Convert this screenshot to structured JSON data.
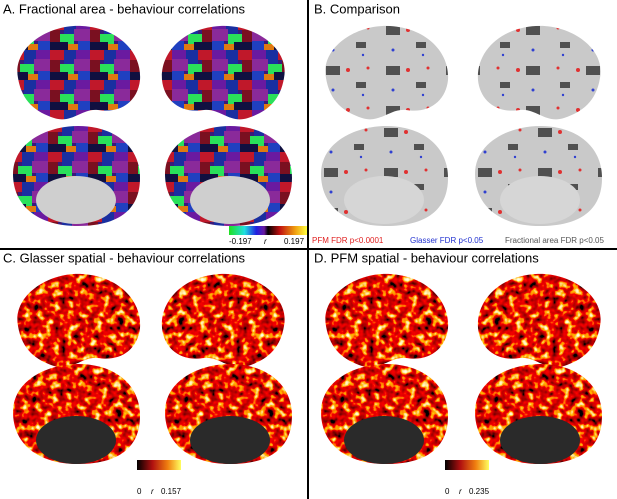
{
  "panels": [
    {
      "title": "A. Fractional area - behaviour correlations",
      "colorbar": {
        "min": -0.197,
        "label": "r",
        "max": 0.197
      }
    },
    {
      "title": "B. Comparison",
      "legend": [
        "PFM FDR p<0.0001",
        "Glasser FDR p<0.05",
        "Fractional area FDR p<0.05"
      ]
    },
    {
      "title": "C. Glasser spatial - behaviour correlations",
      "colorbar": {
        "min": 0,
        "label": "r",
        "max": 0.157
      }
    },
    {
      "title": "D. PFM spatial - behaviour correlations",
      "colorbar": {
        "min": 0,
        "label": "r",
        "max": 0.235
      }
    }
  ]
}
